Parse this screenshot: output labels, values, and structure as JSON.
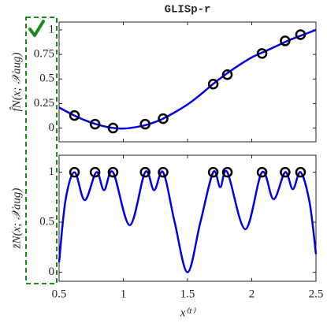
{
  "chart_data": [
    {
      "type": "line",
      "title": "GLISp-r",
      "ylabel": "f̂N(x; 𝒳aug)",
      "xlim": [
        0.5,
        2.5
      ],
      "ylim": [
        -0.14,
        1.08
      ],
      "xticks": [
        0.5,
        1,
        1.5,
        2,
        2.5
      ],
      "yticks": [
        0,
        0.25,
        0.5,
        0.75,
        1
      ],
      "series": [
        {
          "type": "line",
          "color": "#0000e6",
          "x": [
            0.5,
            0.6,
            0.7,
            0.8,
            0.9,
            1.0,
            1.1,
            1.2,
            1.3,
            1.4,
            1.5,
            1.6,
            1.7,
            1.8,
            1.9,
            2.0,
            2.1,
            2.2,
            2.3,
            2.4,
            2.5
          ],
          "values": [
            0.21,
            0.14,
            0.08,
            0.035,
            0.005,
            -0.005,
            0.01,
            0.04,
            0.09,
            0.16,
            0.24,
            0.34,
            0.45,
            0.55,
            0.64,
            0.72,
            0.78,
            0.84,
            0.9,
            0.95,
            1.0
          ]
        },
        {
          "type": "scatter",
          "color": "#000000",
          "x": [
            0.62,
            0.78,
            0.92,
            1.17,
            1.31,
            1.7,
            1.81,
            2.08,
            2.26,
            2.38
          ],
          "values": [
            0.128,
            0.04,
            0,
            0.04,
            0.096,
            0.448,
            0.544,
            0.76,
            0.888,
            0.952
          ]
        }
      ]
    },
    {
      "type": "line",
      "ylabel": "z̄N(x; 𝒳aug)",
      "xlabel": "x⁽¹⁾",
      "xlim": [
        0.5,
        2.5
      ],
      "ylim": [
        -0.09,
        1.17
      ],
      "xticks": [
        0.5,
        1,
        1.5,
        2,
        2.5
      ],
      "yticks": [
        0,
        0.5,
        1
      ],
      "series": [
        {
          "type": "line",
          "color": "#0000e6",
          "x": [
            0.5,
            0.55,
            0.62,
            0.7,
            0.79,
            0.85,
            0.92,
            1.05,
            1.17,
            1.24,
            1.31,
            1.4,
            1.5,
            1.6,
            1.7,
            1.755,
            1.81,
            1.95,
            2.08,
            2.17,
            2.26,
            2.32,
            2.38,
            2.45,
            2.5
          ],
          "values": [
            0.1,
            0.72,
            1.0,
            0.72,
            1.0,
            0.82,
            1.0,
            0.47,
            1.0,
            0.82,
            1.0,
            0.5,
            0.0,
            0.5,
            1.0,
            0.85,
            1.0,
            0.43,
            1.0,
            0.73,
            1.0,
            0.83,
            1.0,
            0.7,
            0.18
          ]
        },
        {
          "type": "scatter",
          "color": "#000000",
          "x": [
            0.62,
            0.78,
            0.92,
            1.17,
            1.31,
            1.7,
            1.81,
            2.08,
            2.26,
            2.38
          ],
          "values": [
            1,
            1,
            1,
            1,
            1,
            1,
            1,
            1,
            1,
            1
          ]
        }
      ]
    }
  ]
}
